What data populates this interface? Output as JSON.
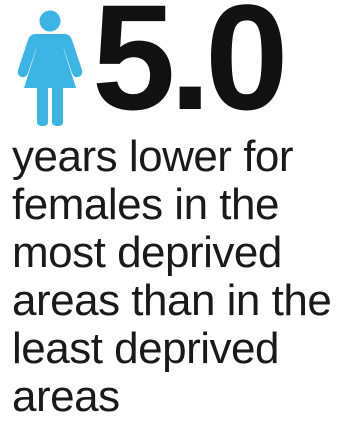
{
  "stat": {
    "value": "5.0",
    "icon": "female-person-icon",
    "icon_color": "#3cb4e4"
  },
  "caption": {
    "lines": [
      "years lower for",
      "females in the",
      "most deprived",
      "areas than in the",
      "least deprived",
      "areas"
    ]
  },
  "colors": {
    "text": "#111111",
    "accent": "#3cb4e4"
  }
}
